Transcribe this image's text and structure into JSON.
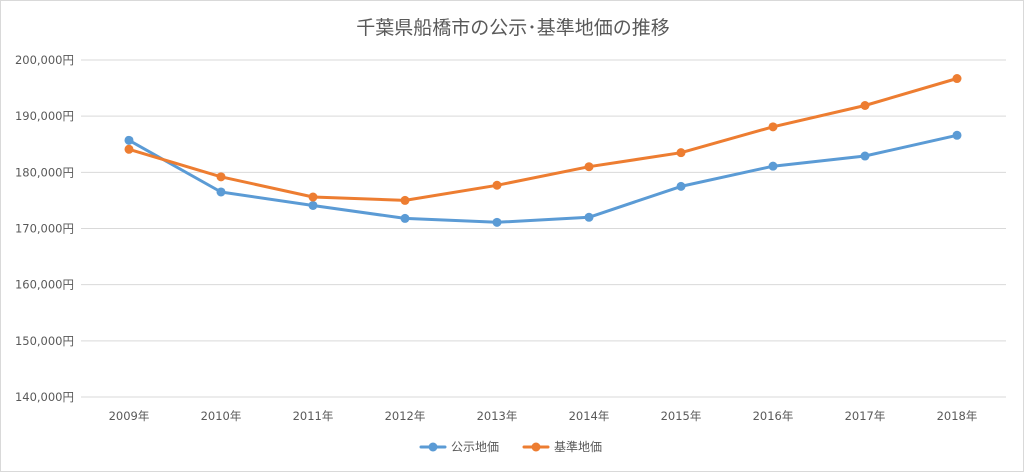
{
  "chart_data": {
    "type": "line",
    "title": "千葉県船橋市の公示･基準地価の推移",
    "xlabel": "",
    "ylabel": "",
    "categories": [
      "2009年",
      "2010年",
      "2011年",
      "2012年",
      "2013年",
      "2014年",
      "2015年",
      "2016年",
      "2017年",
      "2018年"
    ],
    "ylim": [
      140000,
      200000
    ],
    "yticks": [
      140000,
      150000,
      160000,
      170000,
      180000,
      190000,
      200000
    ],
    "ytick_labels": [
      "140,000円",
      "150,000円",
      "160,000円",
      "170,000円",
      "180,000円",
      "190,000円",
      "200,000円"
    ],
    "grid": true,
    "legend_position": "bottom",
    "series": [
      {
        "name": "公示地価",
        "color": "#5b9bd5",
        "values": [
          185700,
          176500,
          174100,
          171800,
          171100,
          172000,
          177500,
          181100,
          182900,
          186600
        ]
      },
      {
        "name": "基準地価",
        "color": "#ed7d31",
        "values": [
          184100,
          179200,
          175600,
          175000,
          177700,
          181000,
          183500,
          188100,
          191900,
          196700
        ]
      }
    ]
  }
}
